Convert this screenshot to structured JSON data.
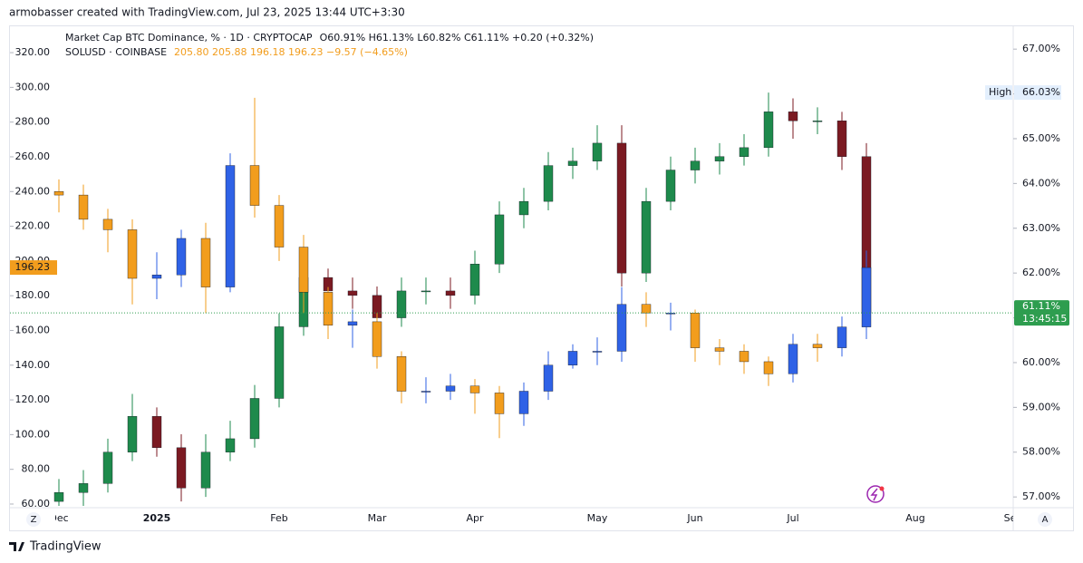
{
  "header": "armobasser created with TradingView.com, Jul 23, 2025 13:44 UTC+3:30",
  "footer": "TradingView",
  "chart_data": {
    "type": "candlestick",
    "categories": [
      "Dec",
      null,
      null,
      null,
      "2025",
      null,
      null,
      null,
      null,
      "Feb",
      null,
      null,
      null,
      "Mar",
      null,
      null,
      null,
      "Apr",
      null,
      null,
      null,
      null,
      "May",
      null,
      null,
      null,
      "Jun",
      null,
      null,
      null,
      "Jul",
      null,
      null,
      null,
      null,
      "Aug",
      null,
      null,
      null,
      "Sep"
    ],
    "ylim": [
      57.9,
      335.7
    ],
    "yticks": [
      {
        "value": 60,
        "label": "60.00"
      },
      {
        "value": 80,
        "label": "80.00"
      },
      {
        "value": 100,
        "label": "100.00"
      },
      {
        "value": 120,
        "label": "120.00"
      },
      {
        "value": 140,
        "label": "140.00"
      },
      {
        "value": 160,
        "label": "160.00"
      },
      {
        "value": 180,
        "label": "180.00"
      },
      {
        "value": 200,
        "label": "200.00"
      },
      {
        "value": 220,
        "label": "220.00"
      },
      {
        "value": 240,
        "label": "240.00"
      },
      {
        "value": 260,
        "label": "260.00"
      },
      {
        "value": 280,
        "label": "280.00"
      },
      {
        "value": 300,
        "label": "300.00"
      },
      {
        "value": 320,
        "label": "320.00"
      }
    ],
    "y2lim": [
      56.76,
      67.53
    ],
    "y2ticks": [
      {
        "value": 57,
        "label": "57.00%"
      },
      {
        "value": 58,
        "label": "58.00%"
      },
      {
        "value": 59,
        "label": "59.00%"
      },
      {
        "value": 60,
        "label": "60.00%"
      },
      {
        "value": 61,
        "label": "61.00%"
      },
      {
        "value": 62,
        "label": "62.00%"
      },
      {
        "value": 63,
        "label": "63.00%"
      },
      {
        "value": 64,
        "label": "64.00%"
      },
      {
        "value": 65,
        "label": "65.00%"
      },
      {
        "value": 66,
        "label": "66.00%"
      },
      {
        "value": 67,
        "label": "67.00%"
      }
    ],
    "series": [
      {
        "name": "Market Cap BTC Dominance, % · 1D · CRYPTOCAP",
        "legend_values": "O60.91% H61.13% L60.82% C61.11% +0.20 (+0.32%)",
        "axis": "y2",
        "up_color": "#1e8a4c",
        "down_color": "#7b1a22",
        "last_label": "61.11%",
        "countdown": "13:45:15",
        "high_title": "High",
        "high_label": "66.03%",
        "open": [
          56.9,
          57.1,
          57.3,
          58.0,
          58.8,
          58.1,
          57.2,
          58.0,
          58.3,
          59.2,
          60.8,
          61.9,
          61.6,
          61.5,
          61.0,
          61.6,
          61.6,
          61.5,
          62.2,
          63.3,
          63.6,
          64.4,
          64.5,
          64.9,
          62.0,
          63.6,
          64.3,
          64.5,
          64.6,
          64.8,
          65.6,
          65.4,
          65.4,
          64.6,
          null,
          null,
          null,
          null,
          null,
          null
        ],
        "high": [
          57.4,
          57.6,
          58.3,
          59.3,
          59.0,
          58.4,
          58.4,
          58.7,
          59.5,
          61.1,
          62.3,
          62.1,
          61.9,
          61.7,
          61.9,
          61.9,
          61.9,
          62.5,
          63.6,
          63.9,
          64.7,
          64.8,
          65.3,
          65.3,
          63.9,
          64.6,
          64.8,
          64.9,
          65.1,
          66.03,
          65.9,
          65.7,
          65.6,
          64.9,
          null,
          null,
          null,
          null,
          null,
          null
        ],
        "low": [
          56.8,
          56.8,
          57.1,
          57.8,
          57.9,
          56.9,
          57.0,
          57.8,
          58.1,
          59.0,
          60.6,
          61.3,
          61.2,
          60.7,
          60.8,
          61.3,
          61.2,
          61.3,
          62.0,
          63.0,
          63.4,
          64.1,
          64.3,
          61.7,
          61.8,
          63.4,
          64.0,
          64.2,
          64.4,
          64.6,
          65.0,
          65.1,
          64.3,
          60.82,
          null,
          null,
          null,
          null,
          null,
          null
        ],
        "close": [
          57.1,
          57.3,
          58.0,
          58.8,
          58.1,
          57.2,
          58.0,
          58.3,
          59.2,
          60.8,
          61.9,
          61.6,
          61.5,
          61.0,
          61.6,
          61.6,
          61.5,
          62.2,
          63.3,
          63.6,
          64.4,
          64.5,
          64.9,
          62.0,
          63.6,
          64.3,
          64.5,
          64.6,
          64.8,
          65.6,
          65.4,
          65.4,
          64.6,
          61.11,
          null,
          null,
          null,
          null,
          null,
          null
        ]
      },
      {
        "name": "SOLUSD · COINBASE",
        "legend_values": "205.80 205.88 196.18 196.23 −9.57 (−4.65%)",
        "axis": "y",
        "up_color": "#2f62e6",
        "down_color": "#f29d1d",
        "last_label": "196.23",
        "open": [
          240,
          238,
          224,
          218,
          190,
          192,
          213,
          185,
          255,
          232,
          208,
          182,
          163,
          165,
          145,
          125,
          125,
          128,
          124,
          112,
          125,
          140,
          148,
          148,
          175,
          170,
          170,
          150,
          148,
          142,
          135,
          152,
          150,
          162,
          null,
          null,
          null,
          null,
          null,
          null
        ],
        "high": [
          247,
          244,
          230,
          224,
          205,
          218,
          222,
          262,
          294,
          238,
          215,
          185,
          172,
          170,
          148,
          133,
          135,
          132,
          128,
          130,
          148,
          152,
          156,
          185,
          182,
          176,
          172,
          155,
          152,
          145,
          158,
          158,
          168,
          206,
          null,
          null,
          null,
          null,
          null,
          null
        ],
        "low": [
          228,
          218,
          205,
          175,
          178,
          185,
          170,
          182,
          225,
          200,
          170,
          155,
          150,
          138,
          118,
          118,
          120,
          112,
          98,
          105,
          120,
          138,
          140,
          142,
          162,
          160,
          142,
          140,
          135,
          128,
          130,
          142,
          145,
          155,
          null,
          null,
          null,
          null,
          null,
          null
        ],
        "close": [
          238,
          224,
          218,
          190,
          192,
          213,
          185,
          255,
          232,
          208,
          182,
          163,
          165,
          145,
          125,
          125,
          128,
          124,
          112,
          125,
          140,
          148,
          148,
          175,
          170,
          170,
          150,
          148,
          142,
          135,
          152,
          150,
          162,
          196.23,
          null,
          null,
          null,
          null,
          null,
          null
        ]
      }
    ]
  }
}
